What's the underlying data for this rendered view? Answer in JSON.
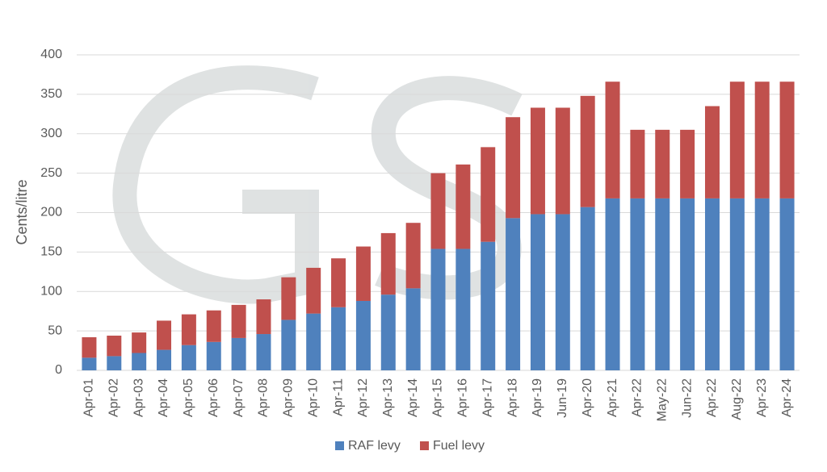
{
  "chart_data": {
    "type": "stacked_bar",
    "y_label": "Cents/litre",
    "categories": [
      "Apr-01",
      "Apr-02",
      "Apr-03",
      "Apr-04",
      "Apr-05",
      "Apr-06",
      "Apr-07",
      "Apr-08",
      "Apr-09",
      "Apr-10",
      "Apr-11",
      "Apr-12",
      "Apr-13",
      "Apr-14",
      "Apr-15",
      "Apr-16",
      "Apr-17",
      "Apr-18",
      "Apr-19",
      "Jun-19",
      "Apr-20",
      "Apr-21",
      "Apr-22",
      "May-22",
      "Jun-22",
      "Apr-22",
      "Aug-22",
      "Apr-23",
      "Apr-24"
    ],
    "series": [
      {
        "name": "RAF levy",
        "color": "#4f81bd",
        "values": [
          16,
          18,
          22,
          26,
          32,
          36,
          41,
          46,
          64,
          72,
          80,
          88,
          96,
          104,
          154,
          154,
          163,
          193,
          198,
          198,
          207,
          218,
          218,
          218,
          218,
          218,
          218,
          218,
          218
        ]
      },
      {
        "name": "Fuel levy",
        "color": "#c0504d",
        "values": [
          26,
          26,
          26,
          37,
          39,
          40,
          42,
          44,
          54,
          58,
          62,
          69,
          78,
          83,
          96,
          107,
          120,
          128,
          135,
          135,
          141,
          148,
          87,
          87,
          87,
          117,
          148,
          148,
          148
        ]
      }
    ],
    "ylim": [
      0,
      400
    ],
    "yticks": [
      0,
      50,
      100,
      150,
      200,
      250,
      300,
      350,
      400
    ],
    "grid": true,
    "legend": "bottom"
  }
}
